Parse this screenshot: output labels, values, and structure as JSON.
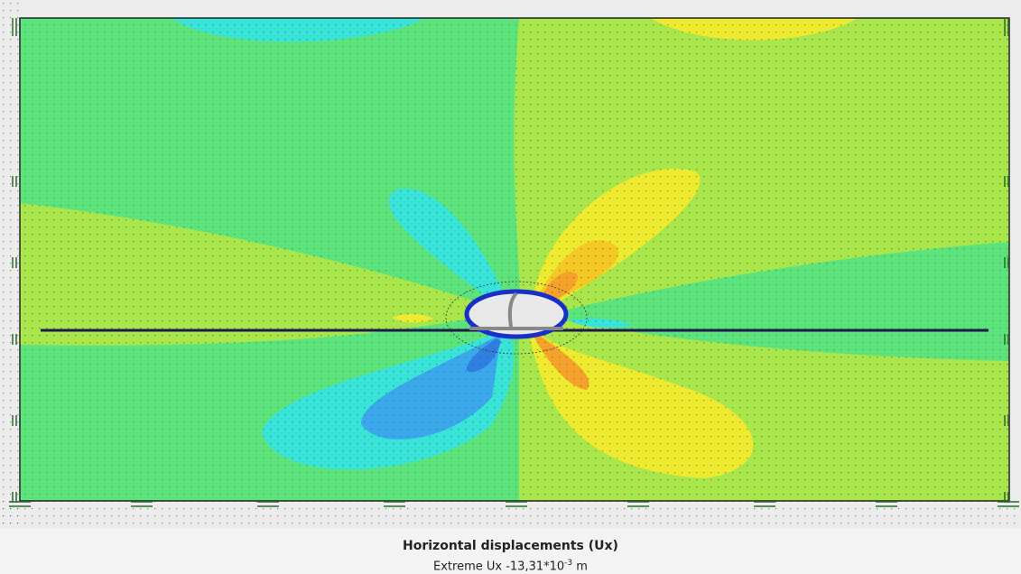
{
  "caption": {
    "title": "Horizontal displacements (Ux)",
    "extreme": {
      "prefix": "Extreme Ux -13,31*10",
      "exponent": "-3",
      "unit": "m"
    }
  }
}
